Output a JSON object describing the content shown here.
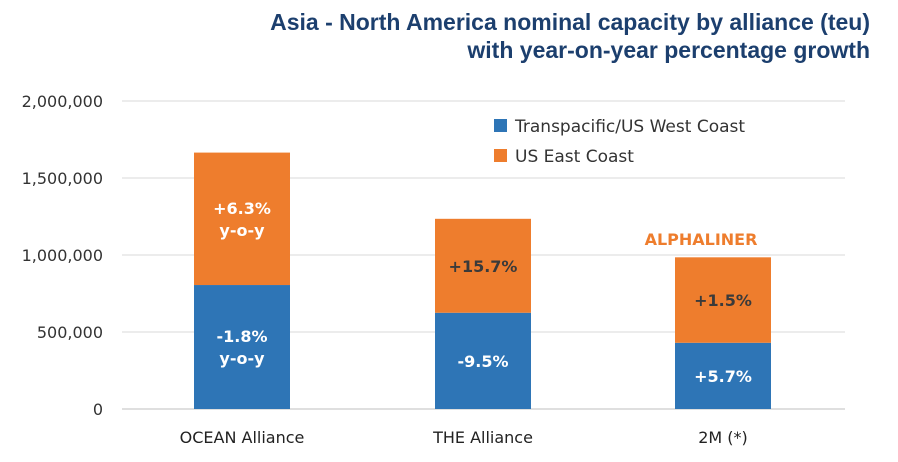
{
  "chart_data": {
    "type": "bar",
    "stacked": true,
    "title_line1": "Asia - North America nominal capacity by alliance (teu)",
    "title_line2": "with year-on-year percentage growth",
    "categories": [
      "OCEAN Alliance",
      "THE Alliance",
      "2M (*)"
    ],
    "series": [
      {
        "name": "Transpacific/US West Coast",
        "color": "#2e75b6",
        "values": [
          805000,
          625000,
          430000
        ],
        "labels": [
          [
            "-1.8%",
            "y-o-y"
          ],
          [
            "-9.5%"
          ],
          [
            "+5.7%"
          ]
        ]
      },
      {
        "name": "US East Coast",
        "color": "#ee7d2d",
        "values": [
          860000,
          610000,
          555000
        ],
        "labels": [
          [
            "+6.3%",
            "y-o-y"
          ],
          [
            "+15.7%"
          ],
          [
            "+1.5%"
          ]
        ]
      }
    ],
    "ylim": [
      0,
      2000000
    ],
    "yticks": [
      "2,000,000",
      "1,500,000",
      "1,000,000",
      "500,000",
      "0"
    ],
    "ytick_values": [
      2000000,
      1500000,
      1000000,
      500000,
      0
    ],
    "grid": true,
    "legend_position": "top-right",
    "watermark": "ALPHALINER"
  }
}
